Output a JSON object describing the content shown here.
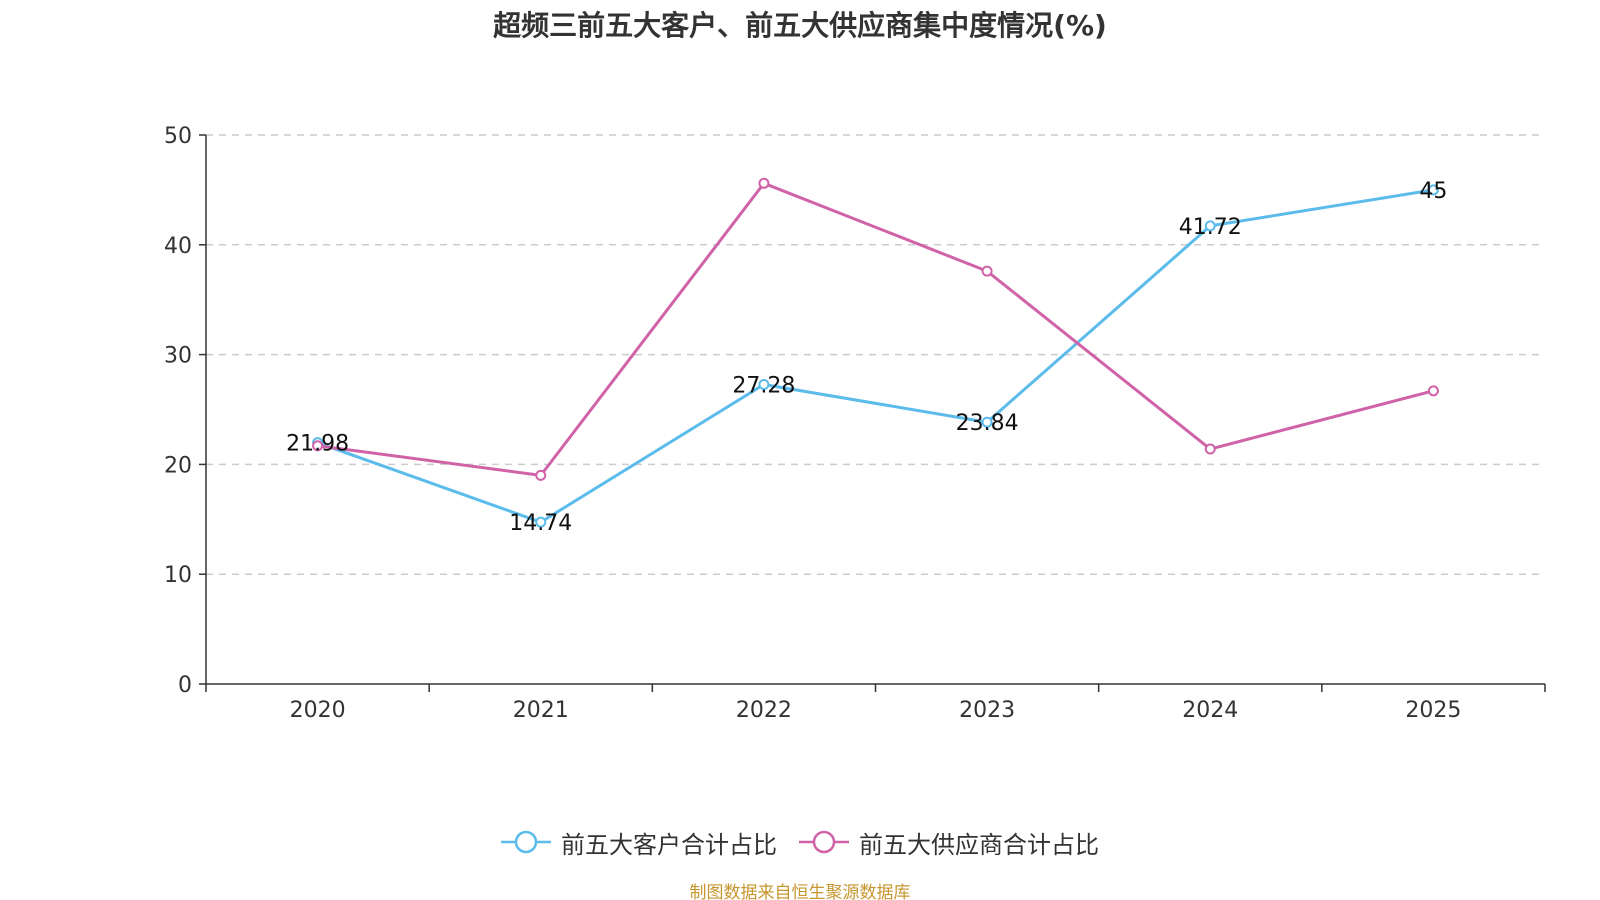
{
  "chart_data": {
    "type": "line",
    "title": "超频三前五大客户、前五大供应商集中度情况(%)",
    "xlabel": "",
    "ylabel": "",
    "categories": [
      "2020",
      "2021",
      "2022",
      "2023",
      "2024",
      "2025"
    ],
    "ylim": [
      0,
      50
    ],
    "yticks": [
      0,
      10,
      20,
      30,
      40,
      50
    ],
    "grid": true,
    "legend_position": "bottom",
    "series": [
      {
        "name": "前五大客户合计占比",
        "color": "#5bbcec",
        "values": [
          21.98,
          14.74,
          27.28,
          23.84,
          41.72,
          45
        ],
        "labels": [
          "21.98",
          "14.74",
          "27.28",
          "23.84",
          "41.72",
          "45"
        ]
      },
      {
        "name": "前五大供应商合计占比",
        "color": "#d063a8",
        "values": [
          21.7,
          19.0,
          45.6,
          37.6,
          21.4,
          26.7
        ]
      }
    ]
  },
  "source_note": "制图数据来自恒生聚源数据库"
}
